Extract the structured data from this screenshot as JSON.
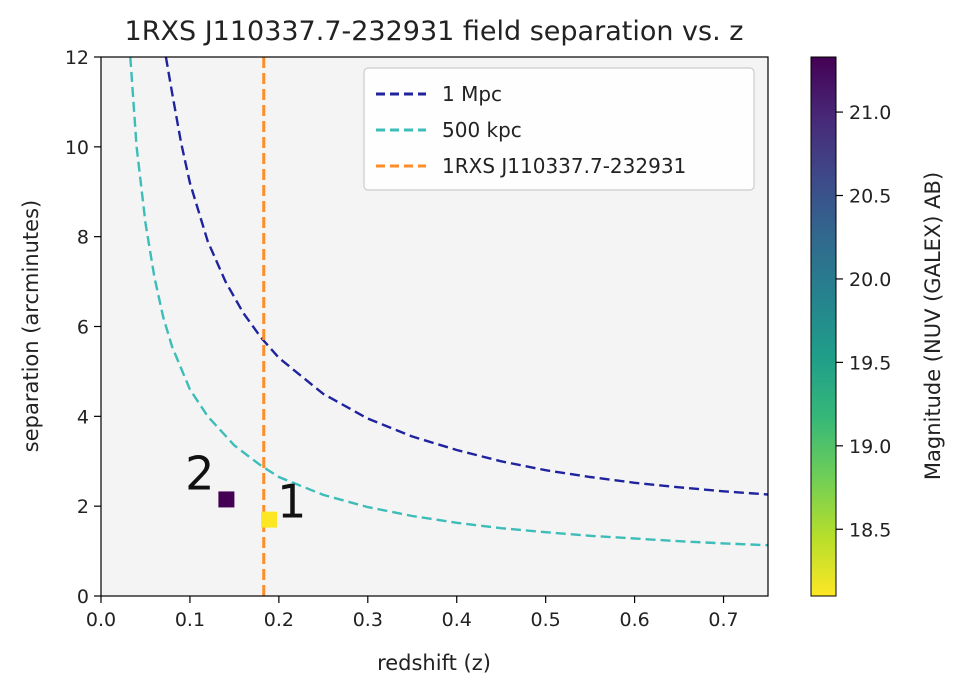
{
  "chart_data": {
    "type": "scatter",
    "title": "1RXS J110337.7-232931 field separation vs. z",
    "xlabel": "redshift (z)",
    "ylabel": "separation (arcminutes)",
    "xlim": [
      0.0,
      0.75
    ],
    "ylim": [
      0,
      12
    ],
    "x_ticks": [
      "0.0",
      "0.1",
      "0.2",
      "0.3",
      "0.4",
      "0.5",
      "0.6",
      "0.7"
    ],
    "y_ticks": [
      "0",
      "2",
      "4",
      "6",
      "8",
      "10",
      "12"
    ],
    "grid": false,
    "background": "#f4f4f4",
    "legend_position": "top-right",
    "series": [
      {
        "name": "1 Mpc",
        "style": "dashed",
        "color": "#1f239e",
        "x": [
          0.073,
          0.08,
          0.09,
          0.1,
          0.12,
          0.14,
          0.16,
          0.18,
          0.2,
          0.25,
          0.3,
          0.35,
          0.4,
          0.45,
          0.5,
          0.55,
          0.6,
          0.65,
          0.7,
          0.75
        ],
        "y": [
          12.0,
          11.2,
          10.1,
          9.2,
          7.9,
          7.0,
          6.3,
          5.75,
          5.3,
          4.5,
          3.95,
          3.55,
          3.25,
          3.0,
          2.8,
          2.65,
          2.52,
          2.42,
          2.33,
          2.26
        ]
      },
      {
        "name": "500 kpc",
        "style": "dashed",
        "color": "#3dbdb8",
        "x": [
          0.033,
          0.04,
          0.05,
          0.06,
          0.07,
          0.08,
          0.1,
          0.12,
          0.15,
          0.18,
          0.2,
          0.25,
          0.3,
          0.35,
          0.4,
          0.45,
          0.5,
          0.55,
          0.6,
          0.65,
          0.7,
          0.75
        ],
        "y": [
          12.0,
          10.0,
          8.3,
          7.1,
          6.2,
          5.55,
          4.6,
          4.0,
          3.35,
          2.9,
          2.65,
          2.25,
          1.98,
          1.78,
          1.63,
          1.51,
          1.42,
          1.34,
          1.28,
          1.22,
          1.17,
          1.13
        ]
      },
      {
        "name": "1RXS J110337.7-232931",
        "style": "dashed",
        "color": "#ff8c2a",
        "vline_x": 0.183
      }
    ],
    "points": [
      {
        "label": "2",
        "x": 0.141,
        "y": 2.15,
        "magnitude": 21.3,
        "color": "#440154"
      },
      {
        "label": "1",
        "x": 0.189,
        "y": 1.7,
        "magnitude": 18.1,
        "color": "#fde725"
      }
    ],
    "colorbar": {
      "label": "Magnitude (NUV (GALEX) AB)",
      "range": [
        18.1,
        21.33
      ],
      "ticks": [
        "18.5",
        "19.0",
        "19.5",
        "20.0",
        "20.5",
        "21.0"
      ],
      "colormap": "viridis",
      "stops": [
        "#fde725",
        "#b5de2b",
        "#6ece58",
        "#35b779",
        "#1f9e89",
        "#26828e",
        "#31688e",
        "#3e4989",
        "#482878",
        "#440154"
      ]
    }
  }
}
